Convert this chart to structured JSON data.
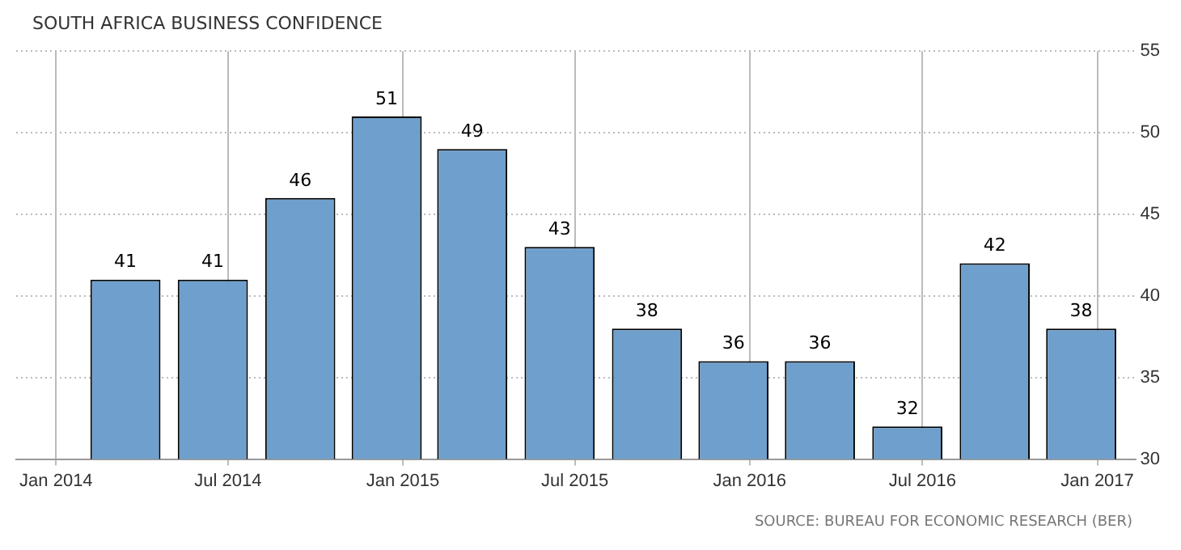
{
  "chart_data": {
    "type": "bar",
    "title": "SOUTH AFRICA BUSINESS CONFIDENCE",
    "x": [
      "2014-03-15",
      "2014-06-15",
      "2014-09-15",
      "2014-12-15",
      "2015-03-15",
      "2015-06-15",
      "2015-09-15",
      "2015-12-15",
      "2016-03-15",
      "2016-06-15",
      "2016-09-15",
      "2016-12-15"
    ],
    "values": [
      41,
      41,
      46,
      51,
      49,
      43,
      38,
      36,
      36,
      32,
      42,
      38
    ],
    "color": "#6f9fcc",
    "xlim": [
      "2013-11-20",
      "2017-02-10"
    ],
    "xticks": [
      {
        "value": "2014-01-01",
        "label": "Jan 2014"
      },
      {
        "value": "2014-07-01",
        "label": "Jul 2014"
      },
      {
        "value": "2015-01-01",
        "label": "Jan 2015"
      },
      {
        "value": "2015-07-01",
        "label": "Jul 2015"
      },
      {
        "value": "2016-01-01",
        "label": "Jan 2016"
      },
      {
        "value": "2016-07-01",
        "label": "Jul 2016"
      },
      {
        "value": "2017-01-01",
        "label": "Jan 2017"
      }
    ],
    "ylim": [
      30,
      55
    ],
    "yticks": [
      30,
      35,
      40,
      45,
      50,
      55
    ],
    "grid": true,
    "data_labels": true,
    "legend": false,
    "annotations": [
      "SOURCE: BUREAU FOR ECONOMIC RESEARCH (BER)"
    ]
  }
}
